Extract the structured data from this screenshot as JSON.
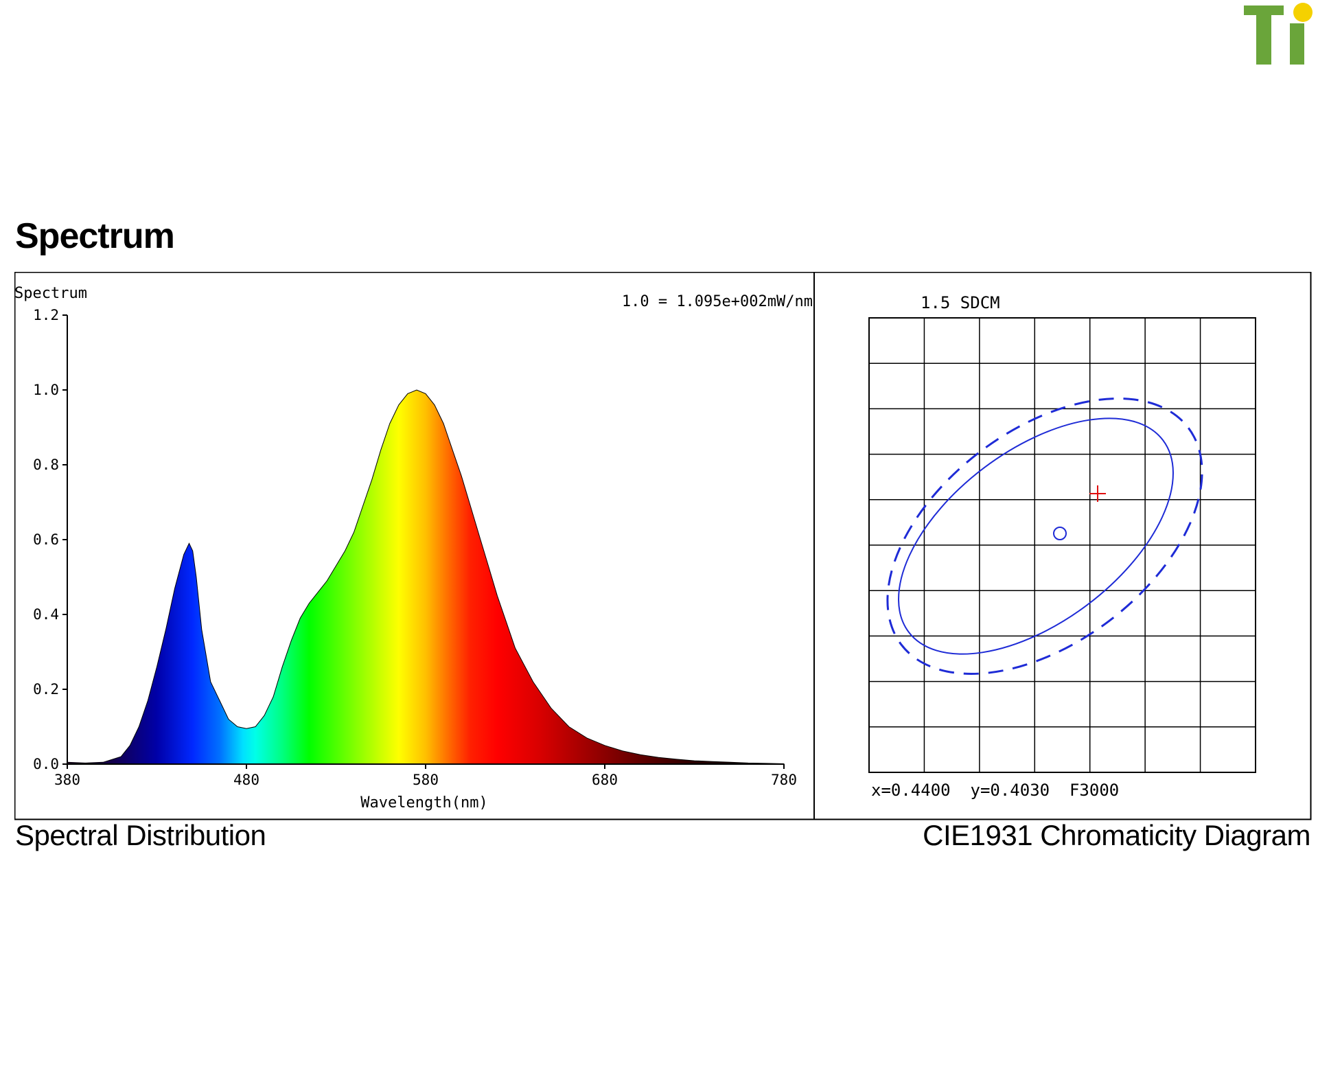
{
  "brand": {
    "logo_text": "Ti",
    "logo_green": "#6aa53a",
    "logo_yellow": "#f5d100"
  },
  "section_title": "Spectrum",
  "captions": {
    "left": "Spectral Distribution",
    "right": "CIE1931 Chromaticity Diagram"
  },
  "chart_data": [
    {
      "type": "area",
      "title": "Spectrum",
      "annotation": "1.0 = 1.095e+002mW/nm",
      "xlabel": "Wavelength(nm)",
      "ylabel": "",
      "xlim": [
        380,
        780
      ],
      "ylim": [
        0,
        1.2
      ],
      "x_ticks": [
        380,
        480,
        580,
        680,
        780
      ],
      "y_ticks": [
        "0.0",
        "0.2",
        "0.4",
        "0.6",
        "0.8",
        "1.0",
        "1.2"
      ],
      "fill": "visible-spectrum color gradient",
      "x": [
        380,
        390,
        400,
        410,
        415,
        420,
        425,
        430,
        435,
        440,
        445,
        448,
        450,
        452,
        455,
        460,
        465,
        470,
        475,
        480,
        485,
        490,
        495,
        500,
        505,
        510,
        515,
        520,
        525,
        530,
        535,
        540,
        545,
        550,
        555,
        560,
        565,
        570,
        575,
        580,
        585,
        590,
        595,
        600,
        605,
        610,
        615,
        620,
        625,
        630,
        640,
        650,
        660,
        670,
        680,
        690,
        700,
        710,
        720,
        730,
        740,
        750,
        760,
        770,
        780
      ],
      "y": [
        0.005,
        0.003,
        0.005,
        0.02,
        0.05,
        0.1,
        0.17,
        0.26,
        0.36,
        0.47,
        0.56,
        0.59,
        0.57,
        0.5,
        0.36,
        0.22,
        0.17,
        0.12,
        0.1,
        0.095,
        0.1,
        0.13,
        0.18,
        0.26,
        0.33,
        0.39,
        0.43,
        0.46,
        0.49,
        0.53,
        0.57,
        0.62,
        0.69,
        0.76,
        0.84,
        0.91,
        0.96,
        0.99,
        1.0,
        0.99,
        0.96,
        0.91,
        0.84,
        0.77,
        0.69,
        0.61,
        0.53,
        0.45,
        0.38,
        0.31,
        0.22,
        0.15,
        0.1,
        0.07,
        0.05,
        0.035,
        0.025,
        0.018,
        0.013,
        0.009,
        0.007,
        0.005,
        0.003,
        0.002,
        0.001
      ]
    },
    {
      "type": "scatter",
      "title": "1.5 SDCM",
      "readout": "x=0.4400  y=0.4030  F3000",
      "grid": true,
      "grid_columns": 7,
      "grid_rows": 10,
      "ellipse_solid": "blue",
      "ellipse_dashed": "blue",
      "reference_marker": "red cross",
      "measured_marker": "blue circle"
    }
  ]
}
